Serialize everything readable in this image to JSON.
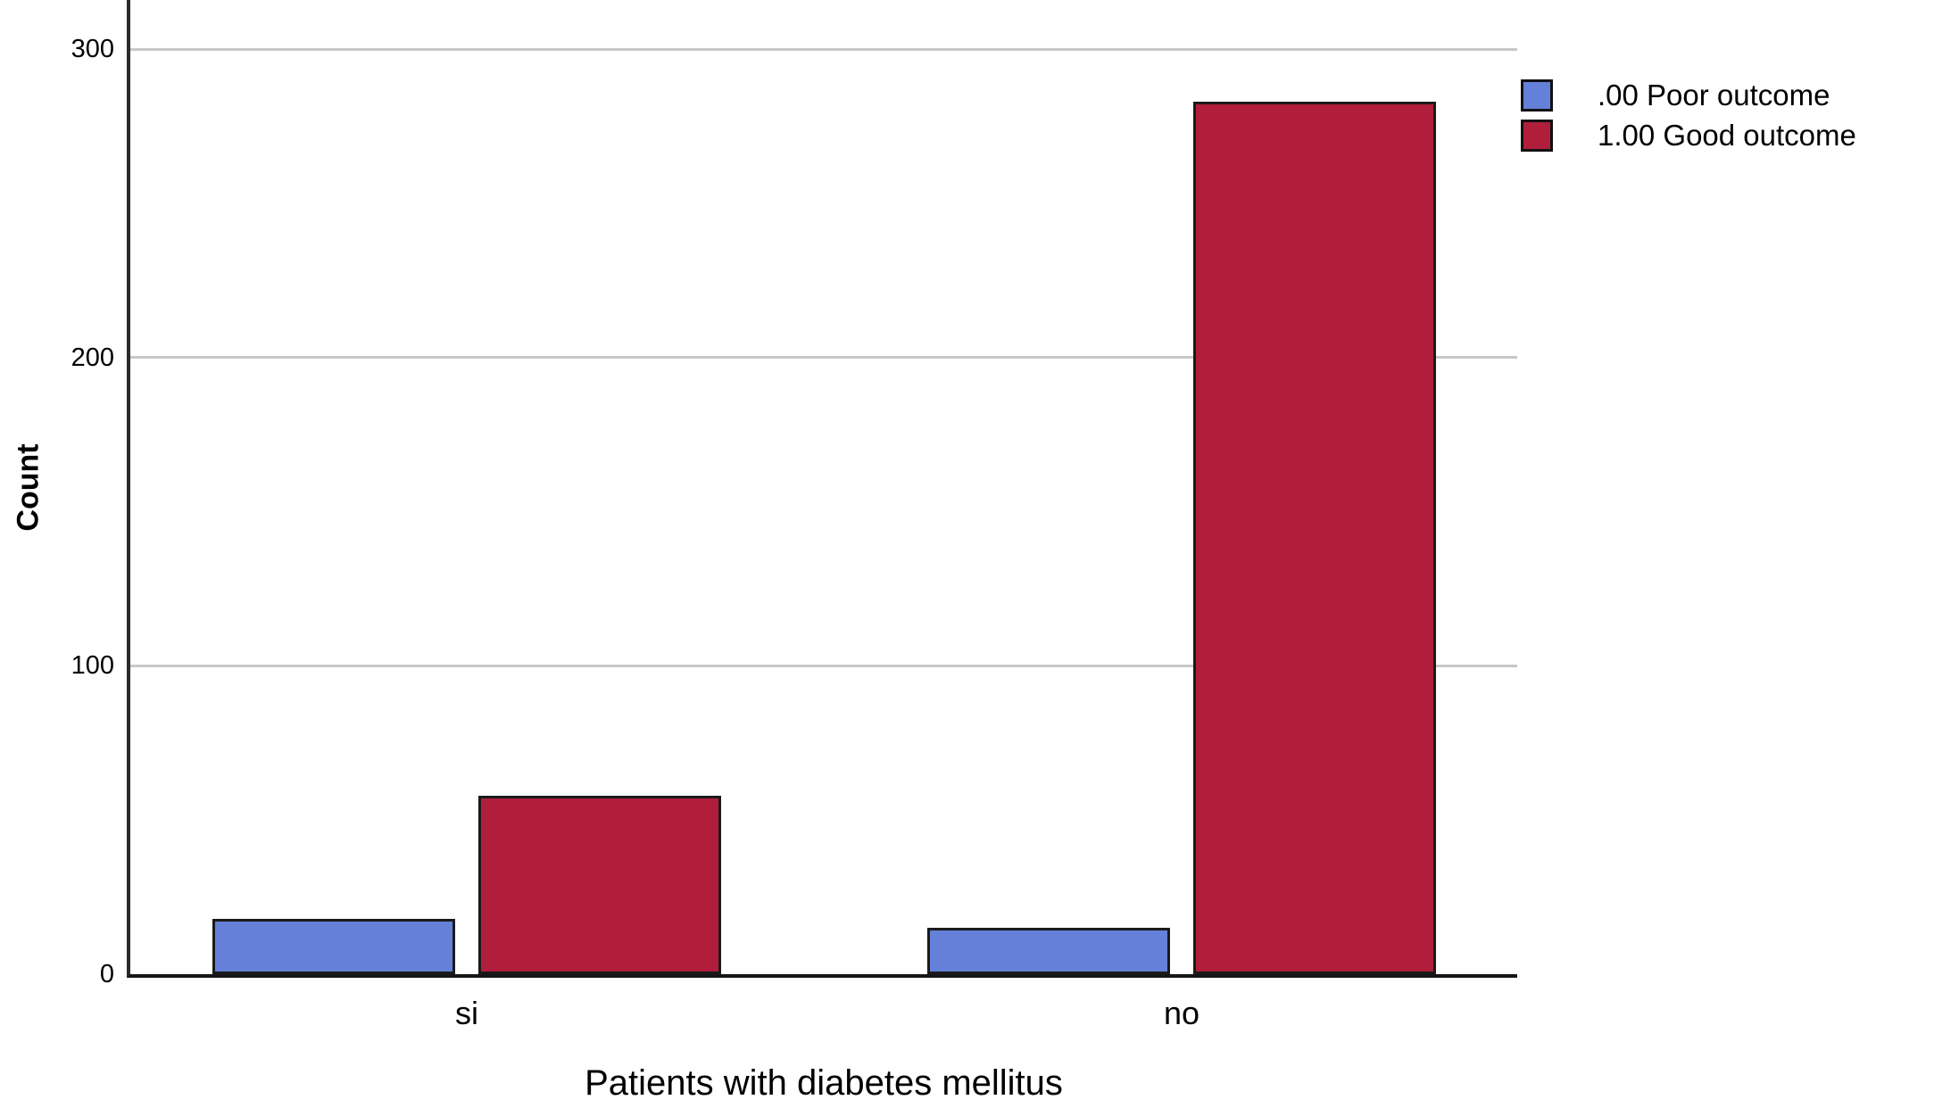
{
  "chart_data": {
    "type": "bar",
    "title": "",
    "categories": [
      "si",
      "no"
    ],
    "series": [
      {
        "name": ".00 Poor outcome",
        "color": "#6480D8",
        "values": [
          18,
          15
        ]
      },
      {
        "name": "1.00 Good outcome",
        "color": "#B01E3C",
        "values": [
          58,
          283
        ]
      }
    ],
    "xlabel": "Patients with diabetes mellitus",
    "ylabel": "Count",
    "ylim": [
      0,
      316
    ],
    "yticks": [
      0,
      100,
      200,
      300
    ],
    "grid": "horizontal-gridlines-on",
    "legend_position": "top-right-outside",
    "axis_color": "#2b2b2b",
    "gridline_color": "#c8c8c8",
    "bar_border_color": "#1a1a1a"
  }
}
